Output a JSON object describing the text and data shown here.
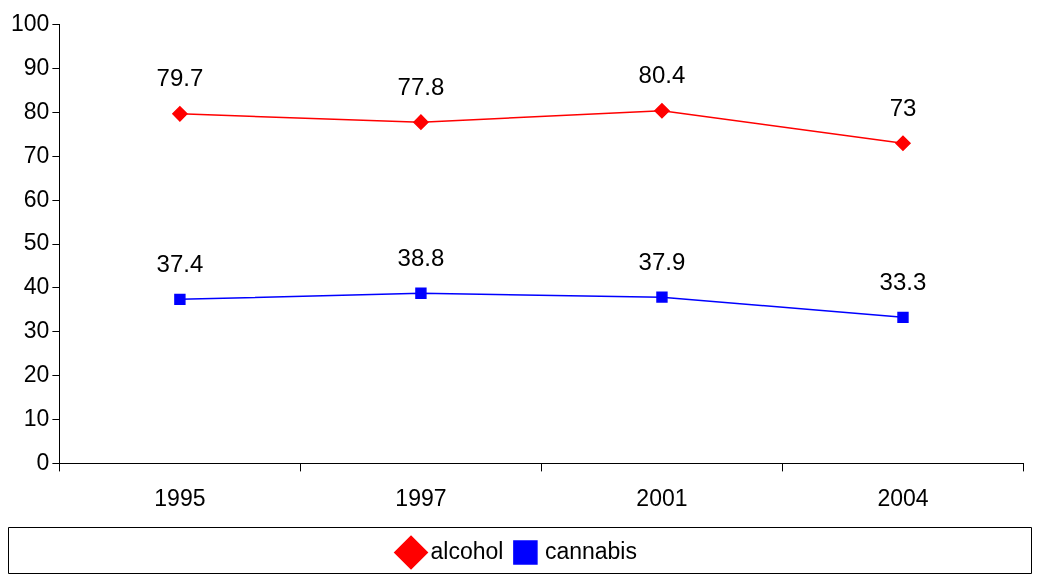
{
  "chart_data": {
    "type": "line",
    "categories": [
      "1995",
      "1997",
      "2001",
      "2004"
    ],
    "series": [
      {
        "name": "alcohol",
        "color": "#ff0000",
        "marker": "diamond",
        "values": [
          79.7,
          77.8,
          80.4,
          73
        ]
      },
      {
        "name": "cannabis",
        "color": "#0000ff",
        "marker": "square",
        "values": [
          37.4,
          38.8,
          37.9,
          33.3
        ]
      }
    ],
    "ylim": [
      0,
      100
    ],
    "yticks": [
      0,
      10,
      20,
      30,
      40,
      50,
      60,
      70,
      80,
      90,
      100
    ],
    "grid": false,
    "legend": "bottom",
    "data_labels": true,
    "line_style": "solid"
  }
}
